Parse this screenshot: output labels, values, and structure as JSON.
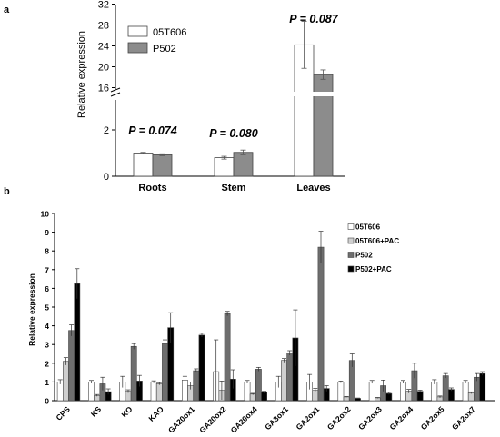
{
  "chart_data": [
    {
      "panel_label": "a",
      "type": "bar",
      "categories": [
        "Roots",
        "Stem",
        "Leaves"
      ],
      "series": [
        {
          "name": "05T606",
          "values": [
            1.0,
            0.8,
            24.2
          ],
          "errors": [
            0.03,
            0.06,
            4.5
          ],
          "color": "#ffffff"
        },
        {
          "name": "P502",
          "values": [
            0.93,
            1.03,
            18.5
          ],
          "errors": [
            0.04,
            0.1,
            0.9
          ],
          "color": "#8c8c8c"
        }
      ],
      "ylabel": "Relative expression",
      "axis_break": {
        "lower_range": [
          0,
          4
        ],
        "upper_range": [
          14,
          32
        ]
      },
      "yticks_lower": [
        "0",
        "2"
      ],
      "yticks_upper": [
        "16",
        "20",
        "24",
        "28",
        "32"
      ],
      "annotations": [
        {
          "category": "Roots",
          "text": "P = 0.074"
        },
        {
          "category": "Stem",
          "text": "P = 0.080"
        },
        {
          "category": "Leaves",
          "text": "P = 0.087"
        }
      ],
      "legend_position": "top-left"
    },
    {
      "panel_label": "b",
      "type": "bar",
      "categories": [
        "CPS",
        "KS",
        "KO",
        "KAO",
        "GA20ox1",
        "GA20ox2",
        "GA20ox4",
        "GA3ox1",
        "GA2ox1",
        "GA2ox2",
        "GA2ox3",
        "GA2ox4",
        "GA2ox5",
        "GA2ox7"
      ],
      "series": [
        {
          "name": "05T606",
          "values": [
            1.0,
            1.0,
            1.0,
            1.0,
            1.1,
            1.55,
            1.0,
            1.0,
            1.0,
            1.0,
            1.0,
            1.0,
            1.0,
            1.0
          ],
          "errors": [
            0.12,
            0.08,
            0.3,
            0.06,
            0.2,
            1.7,
            0.08,
            0.3,
            0.4,
            0.05,
            0.08,
            0.08,
            0.12,
            0.08
          ],
          "color": "#ffffff"
        },
        {
          "name": "05T606+PAC",
          "values": [
            2.1,
            0.28,
            0.5,
            0.9,
            0.8,
            0.55,
            0.35,
            2.15,
            0.55,
            0.2,
            0.15,
            0.5,
            0.2,
            0.42
          ],
          "errors": [
            0.2,
            0.05,
            0.08,
            0.06,
            0.2,
            0.5,
            0.04,
            0.1,
            0.1,
            0.02,
            0.02,
            0.1,
            0.05,
            0.05
          ],
          "color": "#cfcfcf"
        },
        {
          "name": "P502",
          "values": [
            3.75,
            0.9,
            2.9,
            3.05,
            1.6,
            4.65,
            1.68,
            2.55,
            8.2,
            2.15,
            0.8,
            1.6,
            1.33,
            1.25
          ],
          "errors": [
            0.3,
            0.35,
            0.15,
            0.2,
            0.1,
            0.12,
            0.1,
            0.12,
            0.85,
            0.35,
            0.3,
            0.4,
            0.12,
            0.2
          ],
          "color": "#6e6e6e"
        },
        {
          "name": "P502+PAC",
          "values": [
            6.25,
            0.48,
            1.05,
            3.9,
            3.5,
            1.15,
            0.45,
            3.35,
            0.65,
            0.12,
            0.38,
            0.5,
            0.6,
            1.45
          ],
          "errors": [
            0.8,
            0.15,
            0.3,
            0.8,
            0.1,
            0.5,
            0.05,
            1.5,
            0.15,
            0.02,
            0.06,
            0.06,
            0.08,
            0.1
          ],
          "color": "#000000"
        }
      ],
      "ylabel": "Relative expression",
      "ylim": [
        0,
        10
      ],
      "yticks": [
        "0",
        "1",
        "2",
        "3",
        "4",
        "5",
        "6",
        "7",
        "8",
        "9",
        "10"
      ],
      "legend_position": "top-right"
    }
  ]
}
